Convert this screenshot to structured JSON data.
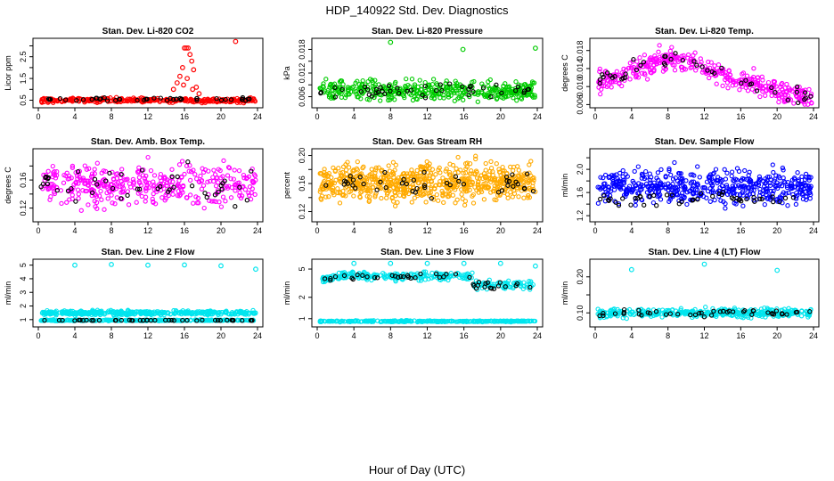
{
  "figure": {
    "title": "HDP_140922  Std. Dev. Diagnostics",
    "xlabel": "Hour of Day (UTC)"
  },
  "chart_data": [
    {
      "type": "scatter",
      "title": "Stan. Dev. Li-820 CO2",
      "ylabel": "Licor ppm",
      "xlim": [
        0,
        24
      ],
      "ylim": [
        0.3,
        3.2
      ],
      "xticks": [
        0,
        4,
        8,
        12,
        16,
        20,
        24
      ],
      "yticks": [
        0.5,
        1.0,
        1.5,
        2.0,
        2.5,
        3.0
      ],
      "ytick_labels": [
        "0.5",
        "",
        "1.5",
        "",
        "2.5",
        ""
      ],
      "series": [
        {
          "color": "#ff0000",
          "pattern": "co2",
          "base": 0.5,
          "spread": 0.05,
          "count": 320,
          "extra": [
            [
              14.8,
              1.0
            ],
            [
              15.2,
              1.3
            ],
            [
              15.5,
              1.6
            ],
            [
              15.8,
              2.0
            ],
            [
              16.0,
              2.9
            ],
            [
              16.2,
              2.9
            ],
            [
              16.4,
              2.9
            ],
            [
              16.6,
              2.6
            ],
            [
              16.8,
              2.3
            ],
            [
              17.0,
              1.9
            ],
            [
              16.3,
              1.5
            ],
            [
              15.9,
              1.2
            ],
            [
              17.3,
              1.1
            ],
            [
              21.6,
              3.2
            ],
            [
              17.6,
              0.8
            ],
            [
              16.9,
              1.0
            ]
          ]
        },
        {
          "color": "#000000",
          "pattern": "flat",
          "base": 0.55,
          "spread": 0.04,
          "count": 45
        }
      ]
    },
    {
      "type": "scatter",
      "title": "Stan. Dev. Li-820 Pressure",
      "ylabel": "kPa",
      "xlim": [
        0,
        24
      ],
      "ylim": [
        0.004,
        0.02
      ],
      "xticks": [
        0,
        4,
        8,
        12,
        16,
        20,
        24
      ],
      "yticks": [
        0.006,
        0.009,
        0.012,
        0.015,
        0.018
      ],
      "ytick_labels": [
        "0.006",
        "",
        "0.012",
        "",
        "0.018"
      ],
      "series": [
        {
          "color": "#00cc00",
          "pattern": "flat",
          "base": 0.0075,
          "spread": 0.0012,
          "count": 420,
          "extra": [
            [
              8.0,
              0.0198
            ],
            [
              15.9,
              0.018
            ],
            [
              23.8,
              0.0183
            ]
          ]
        },
        {
          "color": "#000000",
          "pattern": "flat",
          "base": 0.0076,
          "spread": 0.0008,
          "count": 45
        }
      ]
    },
    {
      "type": "scatter",
      "title": "Stan. Dev. Li-820 Temp.",
      "ylabel": "degrees C",
      "xlim": [
        0,
        24
      ],
      "ylim": [
        0.006,
        0.02
      ],
      "xticks": [
        0,
        4,
        8,
        12,
        16,
        20,
        24
      ],
      "yticks": [
        0.006,
        0.01,
        0.014,
        0.018
      ],
      "ytick_labels": [
        "0.006",
        "0.010",
        "0.014",
        "0.018"
      ],
      "series": [
        {
          "color": "#ff00ff",
          "pattern": "temp",
          "base": 0.0135,
          "spread": 0.0012,
          "count": 380
        },
        {
          "color": "#000000",
          "pattern": "temp",
          "base": 0.0135,
          "spread": 0.001,
          "count": 45
        }
      ]
    },
    {
      "type": "scatter",
      "title": "Stan. Dev. Amb. Box Temp.",
      "ylabel": "degrees C",
      "xlim": [
        0,
        24
      ],
      "ylim": [
        0.105,
        0.2
      ],
      "xticks": [
        0,
        4,
        8,
        12,
        16,
        20,
        24
      ],
      "yticks": [
        0.12,
        0.14,
        0.16,
        0.18
      ],
      "ytick_labels": [
        "0.12",
        "",
        "0.16",
        ""
      ],
      "series": [
        {
          "color": "#ff00ff",
          "pattern": "flat",
          "base": 0.153,
          "spread": 0.014,
          "count": 380
        },
        {
          "color": "#000000",
          "pattern": "flat",
          "base": 0.152,
          "spread": 0.012,
          "count": 45
        }
      ]
    },
    {
      "type": "scatter",
      "title": "Stan. Dev. Gas Stream RH",
      "ylabel": "percent",
      "xlim": [
        0,
        24
      ],
      "ylim": [
        0.11,
        0.205
      ],
      "xticks": [
        0,
        4,
        8,
        12,
        16,
        20,
        24
      ],
      "yticks": [
        0.12,
        0.14,
        0.16,
        0.18,
        0.2
      ],
      "ytick_labels": [
        "0.12",
        "",
        "0.16",
        "",
        "0.20"
      ],
      "series": [
        {
          "color": "#ffaa00",
          "pattern": "flat",
          "base": 0.162,
          "spread": 0.013,
          "count": 700
        },
        {
          "color": "#000000",
          "pattern": "flat",
          "base": 0.16,
          "spread": 0.011,
          "count": 45
        }
      ]
    },
    {
      "type": "scatter",
      "title": "Stan. Dev. Sample Flow",
      "ylabel": "ml/min",
      "xlim": [
        0,
        24
      ],
      "ylim": [
        1.15,
        2.3
      ],
      "xticks": [
        0,
        4,
        8,
        12,
        16,
        20,
        24
      ],
      "yticks": [
        1.2,
        1.4,
        1.6,
        1.8,
        2.0,
        2.2
      ],
      "ytick_labels": [
        "1.2",
        "",
        "1.6",
        "",
        "2.0",
        ""
      ],
      "series": [
        {
          "color": "#0000ff",
          "pattern": "flat",
          "base": 1.7,
          "spread": 0.14,
          "count": 520
        },
        {
          "color": "#000000",
          "pattern": "flat",
          "base": 1.48,
          "spread": 0.06,
          "count": 45
        }
      ]
    },
    {
      "type": "scatter",
      "title": "Stan. Dev. Line 2 Flow",
      "ylabel": "ml/min",
      "xlim": [
        0,
        24
      ],
      "ylim": [
        0.7,
        5.2
      ],
      "xticks": [
        0,
        4,
        8,
        12,
        16,
        20,
        24
      ],
      "yticks": [
        1,
        2,
        3,
        4,
        5
      ],
      "ytick_labels": [
        "1",
        "2",
        "3",
        "4",
        "5"
      ],
      "series": [
        {
          "color": "#00e5ee",
          "pattern": "flat",
          "base": 1.5,
          "spread": 0.08,
          "count": 380,
          "extra": [
            [
              4.0,
              5.0
            ],
            [
              8.0,
              5.05
            ],
            [
              12.0,
              5.0
            ],
            [
              16.0,
              5.02
            ],
            [
              20.0,
              4.95
            ],
            [
              23.8,
              4.7
            ]
          ]
        },
        {
          "color": "#00e5ee",
          "pattern": "flat",
          "base": 0.95,
          "spread": 0.02,
          "count": 300
        },
        {
          "color": "#000000",
          "pattern": "flat",
          "base": 0.95,
          "spread": 0.01,
          "count": 45
        }
      ]
    },
    {
      "type": "scatter",
      "title": "Stan. Dev. Line 3 Flow",
      "ylabel": "ml/min",
      "xlim": [
        0,
        24
      ],
      "ylim": [
        0.85,
        6.2
      ],
      "log_y": true,
      "xticks": [
        0,
        4,
        8,
        12,
        16,
        20,
        24
      ],
      "yticks": [
        1,
        2,
        5
      ],
      "ytick_labels": [
        "1",
        "2",
        "5"
      ],
      "series": [
        {
          "color": "#00e5ee",
          "pattern": "line3",
          "base": 4.0,
          "spread": 0.25,
          "count": 300,
          "extra": [
            [
              4.0,
              6.0
            ],
            [
              8.0,
              6.0
            ],
            [
              12.0,
              6.0
            ],
            [
              16.0,
              6.0
            ],
            [
              20.0,
              6.0
            ],
            [
              23.8,
              5.5
            ]
          ]
        },
        {
          "color": "#00e5ee",
          "pattern": "flat",
          "base": 0.92,
          "spread": 0.01,
          "count": 300
        },
        {
          "color": "#000000",
          "pattern": "line3",
          "base": 4.0,
          "spread": 0.2,
          "count": 45
        }
      ]
    },
    {
      "type": "scatter",
      "title": "Stan. Dev. Line 4 (LT) Flow",
      "ylabel": "ml/min",
      "xlim": [
        0,
        24
      ],
      "ylim": [
        0.07,
        0.24
      ],
      "xticks": [
        0,
        4,
        8,
        12,
        16,
        20,
        24
      ],
      "yticks": [
        0.1,
        0.15,
        0.2
      ],
      "ytick_labels": [
        "0.10",
        "",
        "0.20"
      ],
      "series": [
        {
          "color": "#00e5ee",
          "pattern": "flat",
          "base": 0.1,
          "spread": 0.006,
          "count": 380,
          "extra": [
            [
              4.0,
              0.22
            ],
            [
              12.0,
              0.235
            ],
            [
              20.0,
              0.218
            ]
          ]
        },
        {
          "color": "#000000",
          "pattern": "flat",
          "base": 0.1,
          "spread": 0.005,
          "count": 45
        }
      ]
    }
  ]
}
